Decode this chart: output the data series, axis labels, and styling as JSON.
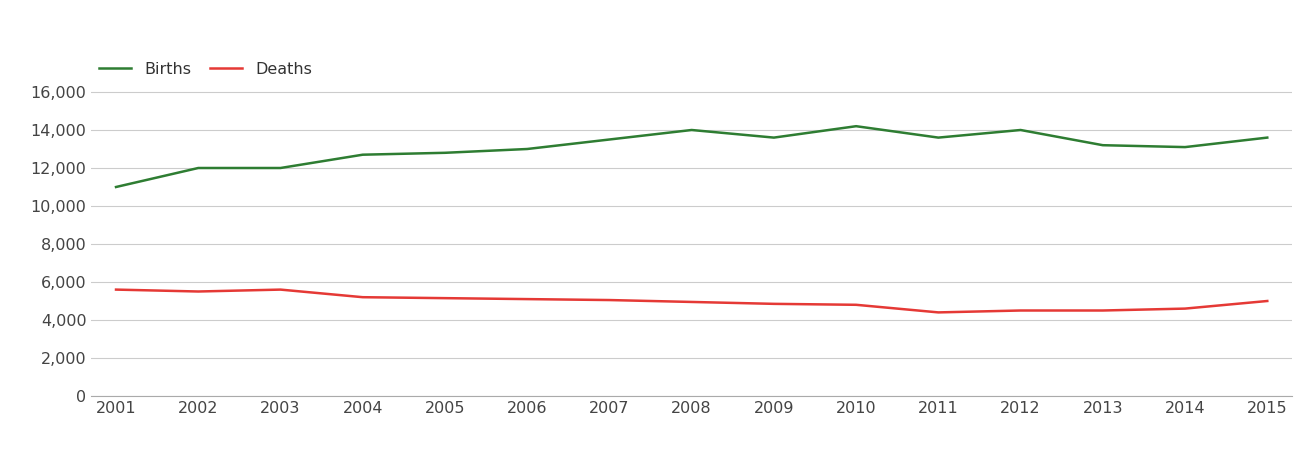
{
  "years": [
    2001,
    2002,
    2003,
    2004,
    2005,
    2006,
    2007,
    2008,
    2009,
    2010,
    2011,
    2012,
    2013,
    2014,
    2015
  ],
  "births": [
    11000,
    12000,
    12000,
    12700,
    12800,
    13000,
    13500,
    14000,
    13600,
    14200,
    13600,
    14000,
    13200,
    13100,
    13600
  ],
  "deaths": [
    5600,
    5500,
    5600,
    5200,
    5150,
    5100,
    5050,
    4950,
    4850,
    4800,
    4400,
    4500,
    4500,
    4600,
    5000
  ],
  "births_color": "#2e7d32",
  "deaths_color": "#e53935",
  "bg_color": "#ffffff",
  "grid_color": "#cccccc",
  "ylim": [
    0,
    18000
  ],
  "yticks": [
    0,
    2000,
    4000,
    6000,
    8000,
    10000,
    12000,
    14000,
    16000
  ],
  "legend_labels": [
    "Births",
    "Deaths"
  ],
  "line_width": 1.8,
  "font_size": 11.5
}
